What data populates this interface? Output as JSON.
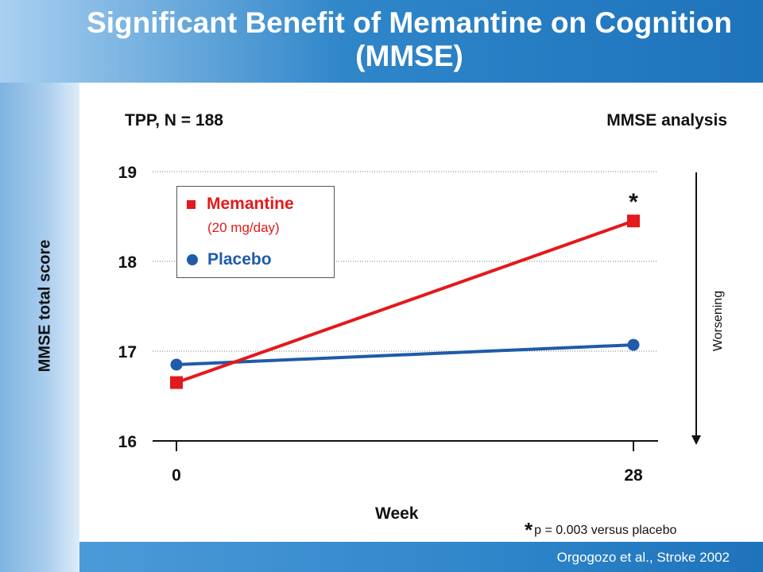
{
  "title": "Significant Benefit of Memantine on Cognition (MMSE)",
  "subheads": {
    "left": "TPP, N = 188",
    "right": "MMSE analysis"
  },
  "citation": "Orgogozo et al., Stroke 2002",
  "footnote": {
    "star": "*",
    "text": "p = 0.003 versus placebo"
  },
  "worsening": "Worsening",
  "colors": {
    "memantine": "#e3191b",
    "placebo": "#1f5ba8",
    "title_bar": "#1e73bb"
  },
  "legend": {
    "memantine": "Memantine",
    "memantine_dose": "(20 mg/day)",
    "placebo": "Placebo"
  },
  "chart_data": {
    "type": "line",
    "title": "",
    "xlabel": "Week",
    "ylabel": "MMSE total score",
    "x": [
      0,
      28
    ],
    "x_ticks": [
      "0",
      "28"
    ],
    "y_ticks": [
      "16",
      "17",
      "18",
      "19"
    ],
    "ylim": [
      16,
      19
    ],
    "grid": "horizontal dotted",
    "legend_position": "top-left",
    "series": [
      {
        "name": "Memantine (20 mg/day)",
        "marker": "square",
        "color": "#e3191b",
        "values": [
          16.65,
          18.45
        ]
      },
      {
        "name": "Placebo",
        "marker": "circle",
        "color": "#1f5ba8",
        "values": [
          16.85,
          17.07
        ]
      }
    ],
    "annotations": [
      {
        "text": "*",
        "series": "Memantine (20 mg/day)",
        "x": 28
      }
    ]
  }
}
